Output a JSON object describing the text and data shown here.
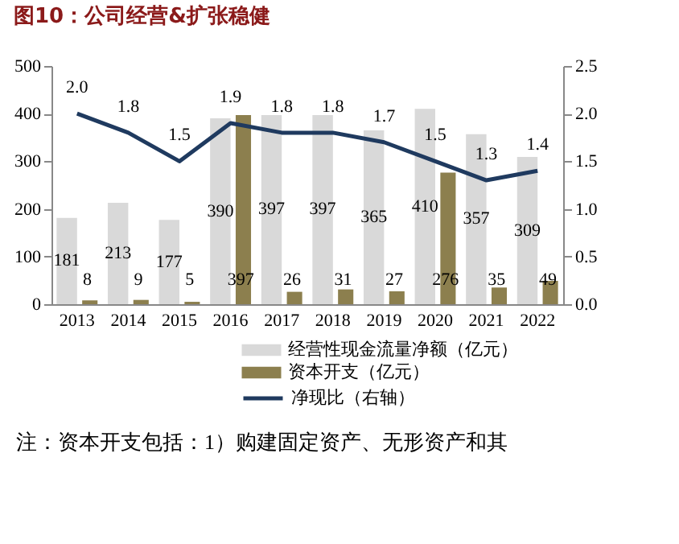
{
  "chart_data": {
    "type": "bar",
    "title": "图10：公司经营&扩张稳健",
    "categories": [
      "2013",
      "2014",
      "2015",
      "2016",
      "2017",
      "2018",
      "2019",
      "2020",
      "2021",
      "2022"
    ],
    "series": [
      {
        "name": "经营性现金流量净额（亿元）",
        "color": "#d9d9d9",
        "values": [
          181,
          213,
          177,
          390,
          397,
          397,
          365,
          410,
          357,
          309
        ]
      },
      {
        "name": "资本开支（亿元）",
        "color": "#8c7f4e",
        "values": [
          8,
          9,
          5,
          397,
          26,
          31,
          27,
          276,
          35,
          49
        ]
      },
      {
        "name": "净现比（右轴）",
        "type": "line",
        "axis": "y2",
        "color": "#1f3a5f",
        "values": [
          2.0,
          1.8,
          1.5,
          1.9,
          1.8,
          1.8,
          1.7,
          1.5,
          1.3,
          1.4
        ],
        "value_labels": [
          "2.0",
          "1.8",
          "1.5",
          "1.9",
          "1.8",
          "1.8",
          "1.7",
          "1.5",
          "1.3",
          "1.4"
        ]
      }
    ],
    "ylim": [
      0,
      500
    ],
    "yticks": [
      0,
      100,
      200,
      300,
      400,
      500
    ],
    "y2lim": [
      0,
      2.5
    ],
    "y2ticks": [
      {
        "value": 0,
        "label": "0.0"
      },
      {
        "value": 0.5,
        "label": "0.5"
      },
      {
        "value": 1,
        "label": "1.0"
      },
      {
        "value": 1.5,
        "label": "1.5"
      },
      {
        "value": 2,
        "label": "2.0"
      },
      {
        "value": 2.5,
        "label": "2.5"
      }
    ],
    "data_labels": true,
    "legend": "bottom",
    "grid": false,
    "marker": "none",
    "line_style": "solid",
    "annotations": [
      "注：资本开支包括：1）购建固定资产、无形资产和其"
    ]
  }
}
